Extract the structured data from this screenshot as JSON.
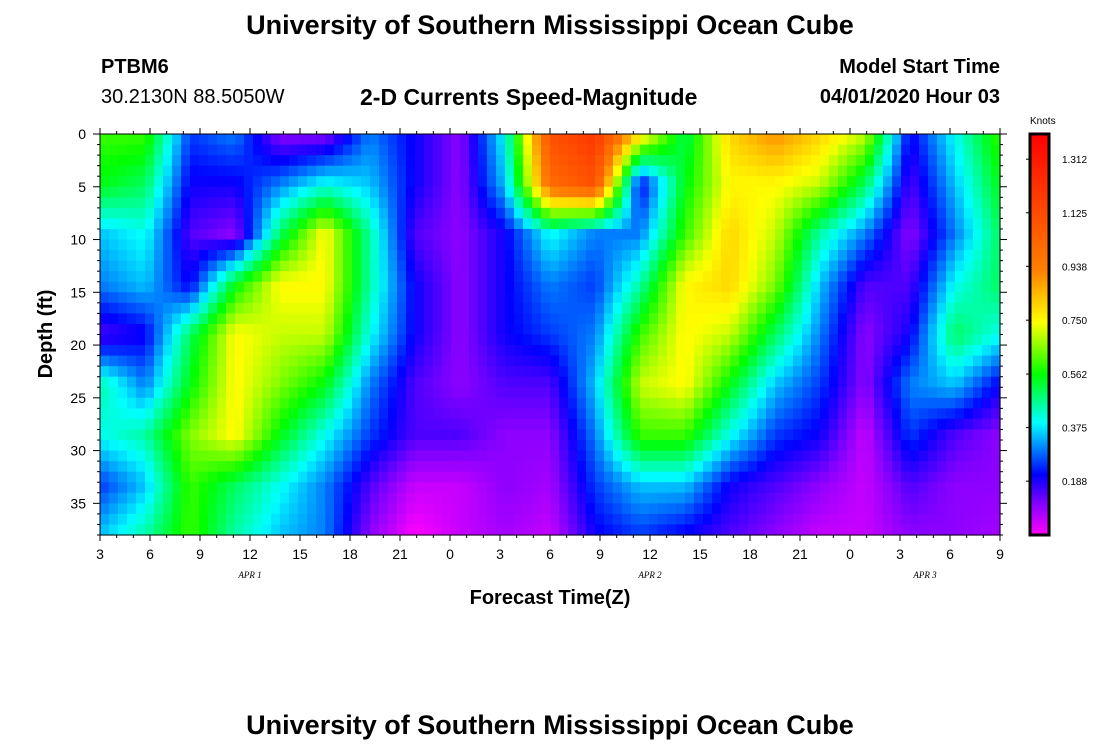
{
  "header": {
    "title": "University of Southern Mississippi Ocean Cube",
    "station": "PTBM6",
    "coords": "30.2130N 88.5050W",
    "plot_title": "2-D Currents Speed-Magnitude",
    "model_label": "Model Start Time",
    "model_time": "04/01/2020 Hour 03"
  },
  "footer": {
    "title": "University of Southern Mississippi Ocean Cube"
  },
  "chart_data": {
    "type": "heatmap",
    "title": "2-D Currents Speed-Magnitude",
    "xlabel": "Forecast Time(Z)",
    "ylabel": "Depth (ft)",
    "x_tick_labels": [
      "3",
      "6",
      "9",
      "12",
      "15",
      "18",
      "21",
      "0",
      "3",
      "6",
      "9",
      "12",
      "15",
      "18",
      "21",
      "0",
      "3",
      "6",
      "9"
    ],
    "x_range_hours": [
      0,
      54
    ],
    "date_labels": [
      {
        "text": "APR 1",
        "hour": 9
      },
      {
        "text": "APR 2",
        "hour": 33
      },
      {
        "text": "APR 3",
        "hour": 49.5
      }
    ],
    "y_ticks": [
      0,
      5,
      10,
      15,
      20,
      25,
      30,
      35
    ],
    "ylim": [
      0,
      38
    ],
    "y_inverted": true,
    "colorbar": {
      "title": "Knots",
      "tick_values": [
        "1.312",
        "1.125",
        "0.938",
        "0.750",
        "0.562",
        "0.375",
        "0.188"
      ],
      "range": [
        0,
        1.4
      ],
      "colors": [
        "#ff00ff",
        "#0000ff",
        "#00ffff",
        "#00ff00",
        "#ffff00",
        "#ff8000",
        "#ff0000"
      ]
    },
    "speed_field_knots": [
      [
        0.6,
        0.6,
        0.25,
        0.3,
        0.1,
        0.1,
        0.3,
        0.2,
        0.1,
        0.4,
        1.1,
        1.2,
        0.8,
        0.5,
        0.8,
        0.9,
        0.8,
        0.7,
        0.2,
        0.4,
        0.6
      ],
      [
        0.55,
        0.5,
        0.2,
        0.2,
        0.3,
        0.4,
        0.35,
        0.2,
        0.1,
        0.35,
        1.0,
        1.1,
        0.2,
        0.55,
        0.75,
        0.75,
        0.7,
        0.5,
        0.15,
        0.35,
        0.55
      ],
      [
        0.35,
        0.4,
        0.15,
        0.1,
        0.5,
        0.75,
        0.45,
        0.15,
        0.1,
        0.2,
        0.4,
        0.3,
        0.3,
        0.6,
        0.8,
        0.7,
        0.45,
        0.3,
        0.1,
        0.3,
        0.5
      ],
      [
        0.3,
        0.35,
        0.2,
        0.55,
        0.75,
        0.75,
        0.45,
        0.2,
        0.1,
        0.2,
        0.3,
        0.25,
        0.45,
        0.75,
        0.8,
        0.65,
        0.35,
        0.15,
        0.15,
        0.4,
        0.5
      ],
      [
        0.15,
        0.2,
        0.5,
        0.75,
        0.7,
        0.7,
        0.4,
        0.2,
        0.1,
        0.2,
        0.25,
        0.3,
        0.6,
        0.75,
        0.7,
        0.5,
        0.3,
        0.1,
        0.2,
        0.5,
        0.4
      ],
      [
        0.45,
        0.3,
        0.55,
        0.75,
        0.65,
        0.55,
        0.3,
        0.15,
        0.1,
        0.15,
        0.15,
        0.35,
        0.7,
        0.75,
        0.55,
        0.35,
        0.25,
        0.1,
        0.3,
        0.35,
        0.2
      ],
      [
        0.4,
        0.45,
        0.65,
        0.75,
        0.55,
        0.4,
        0.25,
        0.15,
        0.15,
        0.1,
        0.1,
        0.3,
        0.6,
        0.6,
        0.4,
        0.25,
        0.2,
        0.05,
        0.25,
        0.15,
        0.1
      ],
      [
        0.25,
        0.35,
        0.6,
        0.5,
        0.4,
        0.3,
        0.15,
        0.05,
        0.05,
        0.1,
        0.08,
        0.25,
        0.35,
        0.35,
        0.2,
        0.15,
        0.1,
        0.05,
        0.15,
        0.1,
        0.1
      ],
      [
        0.35,
        0.45,
        0.6,
        0.45,
        0.35,
        0.3,
        0.1,
        0.0,
        0.05,
        0.08,
        0.05,
        0.2,
        0.25,
        0.2,
        0.15,
        0.1,
        0.05,
        0.05,
        0.1,
        0.1,
        0.08
      ]
    ]
  }
}
